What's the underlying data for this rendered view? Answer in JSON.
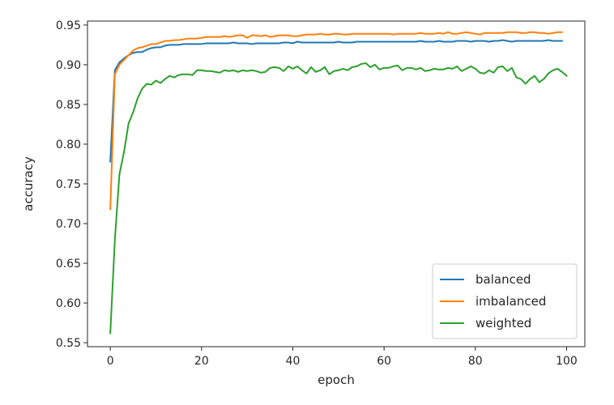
{
  "chart_data": {
    "type": "line",
    "xlabel": "epoch",
    "ylabel": "accuracy",
    "xlim": [
      -5,
      104
    ],
    "ylim": [
      0.545,
      0.955
    ],
    "xticks": [
      0,
      20,
      40,
      60,
      80,
      100
    ],
    "xtick_labels": [
      "0",
      "20",
      "40",
      "60",
      "80",
      "100"
    ],
    "yticks": [
      0.55,
      0.6,
      0.65,
      0.7,
      0.75,
      0.8,
      0.85,
      0.9,
      0.95
    ],
    "ytick_labels": [
      "0.55",
      "0.60",
      "0.65",
      "0.70",
      "0.75",
      "0.80",
      "0.85",
      "0.90",
      "0.95"
    ],
    "grid": false,
    "legend_position": "lower-right",
    "series": [
      {
        "name": "balanced",
        "color": "#1f77b4",
        "values": [
          0.778,
          0.893,
          0.903,
          0.908,
          0.912,
          0.915,
          0.916,
          0.916,
          0.919,
          0.921,
          0.922,
          0.922,
          0.924,
          0.925,
          0.925,
          0.925,
          0.926,
          0.926,
          0.926,
          0.926,
          0.926,
          0.927,
          0.927,
          0.927,
          0.927,
          0.927,
          0.927,
          0.928,
          0.927,
          0.927,
          0.927,
          0.926,
          0.927,
          0.927,
          0.927,
          0.927,
          0.927,
          0.927,
          0.928,
          0.928,
          0.927,
          0.929,
          0.928,
          0.928,
          0.928,
          0.928,
          0.928,
          0.928,
          0.928,
          0.928,
          0.929,
          0.928,
          0.928,
          0.928,
          0.929,
          0.929,
          0.929,
          0.929,
          0.929,
          0.929,
          0.929,
          0.929,
          0.929,
          0.929,
          0.929,
          0.929,
          0.929,
          0.929,
          0.93,
          0.929,
          0.929,
          0.929,
          0.93,
          0.929,
          0.929,
          0.929,
          0.93,
          0.93,
          0.93,
          0.929,
          0.93,
          0.93,
          0.93,
          0.929,
          0.93,
          0.93,
          0.931,
          0.93,
          0.929,
          0.93,
          0.93,
          0.93,
          0.93,
          0.93,
          0.93,
          0.93,
          0.931,
          0.93,
          0.93,
          0.93
        ]
      },
      {
        "name": "imbalanced",
        "color": "#ff7f0e",
        "values": [
          0.718,
          0.888,
          0.9,
          0.906,
          0.912,
          0.918,
          0.921,
          0.922,
          0.924,
          0.926,
          0.926,
          0.928,
          0.93,
          0.93,
          0.931,
          0.931,
          0.932,
          0.933,
          0.933,
          0.933,
          0.934,
          0.935,
          0.935,
          0.935,
          0.935,
          0.936,
          0.935,
          0.936,
          0.937,
          0.937,
          0.934,
          0.937,
          0.937,
          0.936,
          0.937,
          0.935,
          0.936,
          0.937,
          0.937,
          0.937,
          0.936,
          0.936,
          0.937,
          0.938,
          0.938,
          0.938,
          0.939,
          0.938,
          0.938,
          0.939,
          0.939,
          0.938,
          0.938,
          0.939,
          0.939,
          0.939,
          0.939,
          0.939,
          0.939,
          0.939,
          0.939,
          0.939,
          0.938,
          0.939,
          0.939,
          0.939,
          0.939,
          0.939,
          0.94,
          0.939,
          0.939,
          0.939,
          0.94,
          0.939,
          0.941,
          0.939,
          0.939,
          0.94,
          0.941,
          0.94,
          0.939,
          0.938,
          0.94,
          0.94,
          0.94,
          0.94,
          0.94,
          0.941,
          0.941,
          0.941,
          0.94,
          0.94,
          0.941,
          0.941,
          0.94,
          0.94,
          0.939,
          0.94,
          0.941,
          0.941
        ]
      },
      {
        "name": "weighted",
        "color": "#2ca02c",
        "values": [
          0.562,
          0.68,
          0.762,
          0.79,
          0.826,
          0.84,
          0.858,
          0.87,
          0.876,
          0.875,
          0.88,
          0.877,
          0.882,
          0.886,
          0.884,
          0.887,
          0.888,
          0.888,
          0.887,
          0.893,
          0.893,
          0.892,
          0.892,
          0.891,
          0.89,
          0.893,
          0.892,
          0.893,
          0.891,
          0.893,
          0.892,
          0.893,
          0.892,
          0.89,
          0.891,
          0.896,
          0.897,
          0.896,
          0.892,
          0.898,
          0.895,
          0.898,
          0.893,
          0.889,
          0.897,
          0.891,
          0.893,
          0.897,
          0.888,
          0.892,
          0.893,
          0.895,
          0.893,
          0.897,
          0.898,
          0.901,
          0.902,
          0.897,
          0.9,
          0.894,
          0.896,
          0.896,
          0.898,
          0.899,
          0.893,
          0.896,
          0.896,
          0.894,
          0.896,
          0.892,
          0.893,
          0.895,
          0.894,
          0.894,
          0.896,
          0.895,
          0.898,
          0.892,
          0.895,
          0.898,
          0.895,
          0.89,
          0.889,
          0.893,
          0.89,
          0.897,
          0.898,
          0.892,
          0.896,
          0.884,
          0.882,
          0.876,
          0.882,
          0.886,
          0.878,
          0.882,
          0.889,
          0.893,
          0.895,
          0.891,
          0.886
        ]
      }
    ]
  }
}
